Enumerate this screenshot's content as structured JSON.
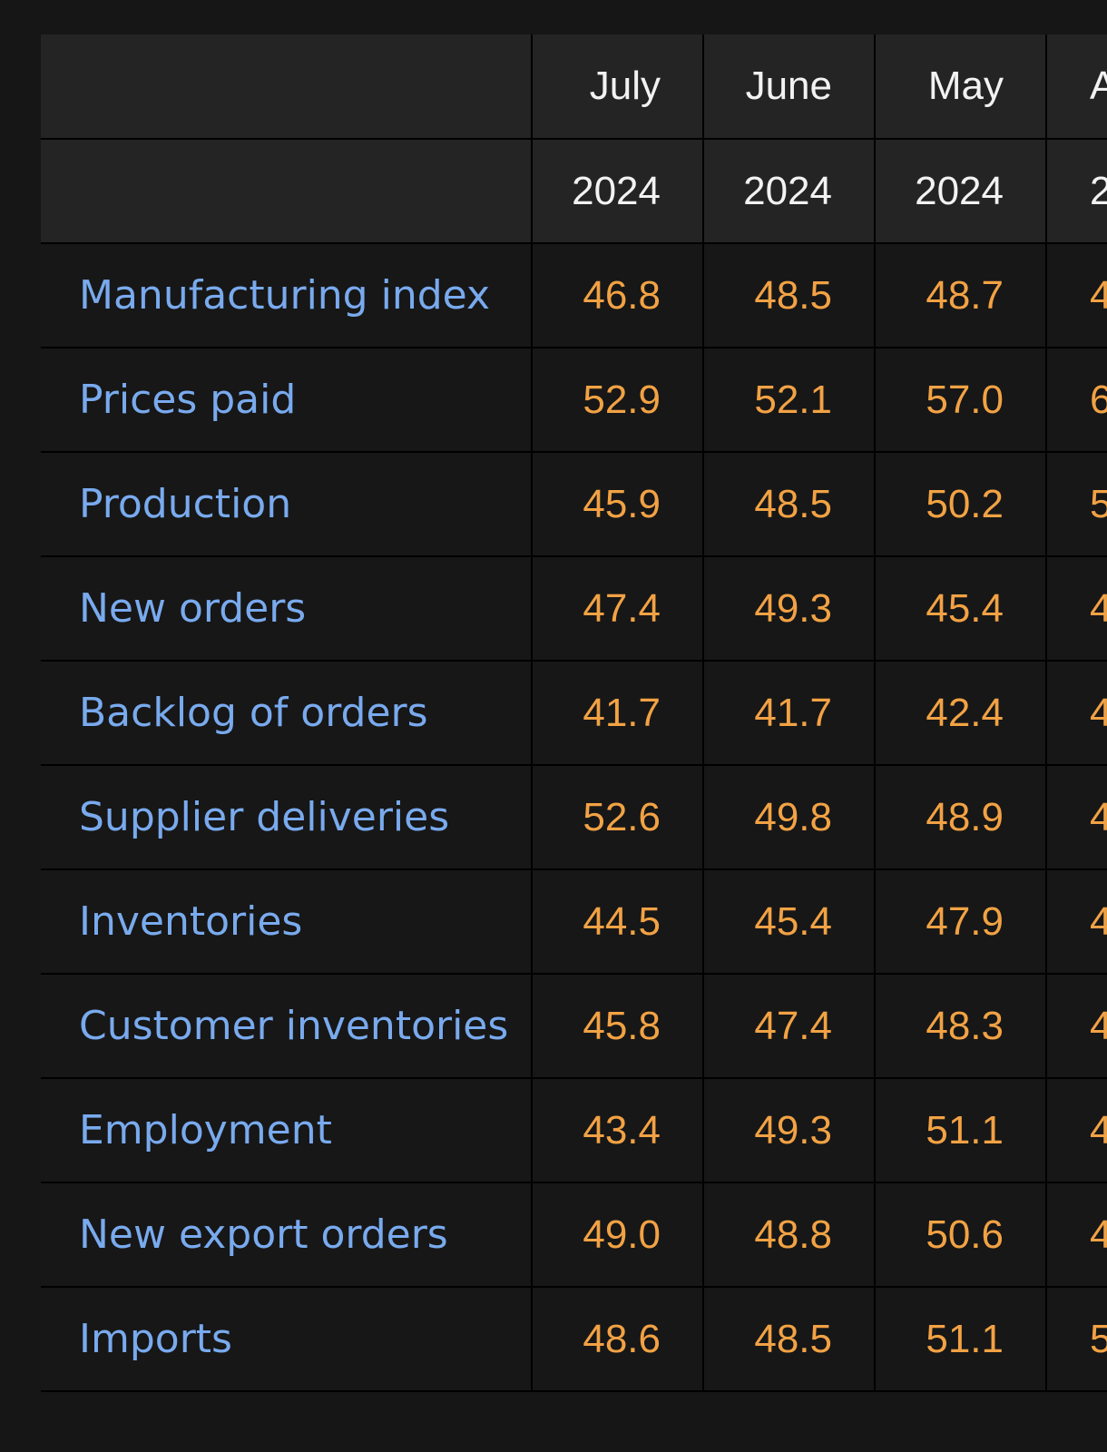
{
  "table": {
    "months": [
      "July",
      "June",
      "May",
      "A"
    ],
    "years": [
      "2024",
      "2024",
      "2024",
      "2"
    ],
    "rows": [
      {
        "label": "Manufacturing index",
        "values": [
          "46.8",
          "48.5",
          "48.7",
          "4"
        ]
      },
      {
        "label": "Prices paid",
        "values": [
          "52.9",
          "52.1",
          "57.0",
          "6"
        ]
      },
      {
        "label": "Production",
        "values": [
          "45.9",
          "48.5",
          "50.2",
          "5"
        ]
      },
      {
        "label": "New orders",
        "values": [
          "47.4",
          "49.3",
          "45.4",
          "4"
        ]
      },
      {
        "label": "Backlog of orders",
        "values": [
          "41.7",
          "41.7",
          "42.4",
          "4"
        ]
      },
      {
        "label": "Supplier deliveries",
        "values": [
          "52.6",
          "49.8",
          "48.9",
          "4"
        ]
      },
      {
        "label": "Inventories",
        "values": [
          "44.5",
          "45.4",
          "47.9",
          "4"
        ]
      },
      {
        "label": "Customer inventories",
        "values": [
          "45.8",
          "47.4",
          "48.3",
          "4"
        ]
      },
      {
        "label": "Employment",
        "values": [
          "43.4",
          "49.3",
          "51.1",
          "4"
        ]
      },
      {
        "label": "New export orders",
        "values": [
          "49.0",
          "48.8",
          "50.6",
          "4"
        ]
      },
      {
        "label": "Imports",
        "values": [
          "48.6",
          "48.5",
          "51.1",
          "5"
        ]
      }
    ]
  }
}
